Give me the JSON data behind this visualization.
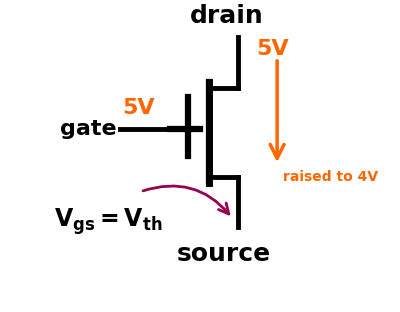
{
  "bg_color": "#ffffff",
  "transistor_color": "#000000",
  "orange_color": "#ff6600",
  "purple_color": "#99004d",
  "drain_label": "drain",
  "drain_voltage": "5V",
  "gate_label": "gate",
  "gate_voltage": "5V",
  "source_label": "source",
  "vgs_label_main": "V",
  "vgs_sub1": "gs",
  "vgs_eq": "=V",
  "vgs_sub2": "th",
  "raised_label": "raised to 4V",
  "title_fontsize": 18,
  "label_fontsize": 16,
  "voltage_fontsize": 16
}
